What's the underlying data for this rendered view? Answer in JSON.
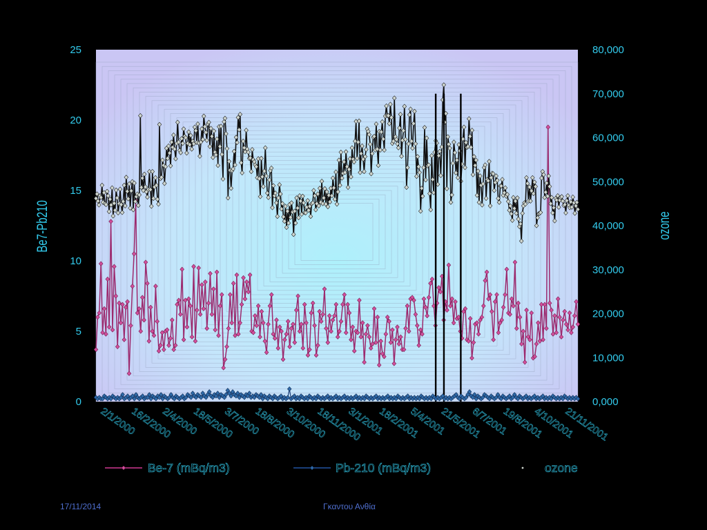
{
  "footer": {
    "date": "17/11/2014",
    "author": "Γκαντου Ανθία"
  },
  "colors": {
    "background": "#000000",
    "axis_text": "#33ccee",
    "be7": "#9c2a6e",
    "pb210": "#1a3f7a",
    "ozone": "#111111",
    "plot_outer": "#c8c6f4",
    "plot_inner": "#aef0fb"
  },
  "chart_data": {
    "type": "line",
    "title": "",
    "ylabel": "Be7-Pb210",
    "y2label": "ozone",
    "ylim": [
      0,
      25
    ],
    "y2lim": [
      0,
      80000
    ],
    "yticks": [
      "0",
      "5",
      "10",
      "15",
      "20",
      "25"
    ],
    "y2ticks": [
      "0,000",
      "10,000",
      "20,000",
      "30,000",
      "40,000",
      "50,000",
      "60,000",
      "70,000",
      "80,000"
    ],
    "x_range": [
      "2/1/2000",
      "31/12/2001"
    ],
    "x_tick_labels": [
      "2/1/2000",
      "16/2/2000",
      "2/4/2000",
      "18/5/2000",
      "3/7/2000",
      "18/8/2000",
      "3/10/2000",
      "18/11/2000",
      "3/1/2001",
      "18/2/2001",
      "5/4/2001",
      "21/5/2001",
      "6/7/2001",
      "19/8/2001",
      "4/10/2001",
      "21/11/2001"
    ],
    "legend_position": "bottom",
    "legend": [
      "Be-7 (mBq/m3)",
      "Pb-210 (mBq/m3)",
      "ozone"
    ],
    "series": [
      {
        "name": "Be-7 (mBq/m3)",
        "axis": "left",
        "values": [
          3.7,
          6.0,
          6.3,
          9.8,
          4.9,
          6.6,
          4.8,
          8.7,
          5.3,
          12.8,
          5.1,
          9.6,
          7.5,
          3.9,
          7.0,
          5.6,
          6.9,
          4.4,
          6.7,
          7.1,
          2.0,
          5.4,
          8.2,
          10.5,
          14.3,
          6.3,
          6.6,
          5.0,
          7.4,
          5.8,
          9.9,
          8.4,
          4.3,
          6.7,
          5.0,
          4.7,
          8.2,
          5.7,
          3.6,
          4.0,
          4.9,
          3.7,
          5.0,
          5.1,
          4.0,
          4.5,
          5.8,
          3.7,
          4.0,
          6.9,
          7.2,
          6.2,
          9.4,
          4.4,
          7.2,
          5.3,
          7.3,
          6.8,
          4.6,
          9.6,
          4.3,
          6.5,
          9.5,
          6.2,
          8.3,
          6.6,
          8.5,
          5.2,
          7.0,
          9.1,
          6.2,
          8.0,
          5.1,
          9.2,
          4.7,
          6.8,
          7.6,
          2.4,
          3.0,
          3.9,
          5.2,
          7.6,
          5.6,
          8.4,
          4.7,
          9.0,
          4.8,
          5.6,
          6.9,
          8.8,
          7.3,
          8.5,
          7.8,
          9.0,
          5.0,
          4.9,
          6.1,
          5.4,
          6.8,
          4.6,
          6.4,
          5.6,
          4.3,
          3.5,
          5.5,
          6.8,
          7.6,
          4.8,
          4.5,
          5.8,
          3.8,
          5.3,
          5.0,
          3.0,
          4.4,
          4.8,
          5.7,
          3.9,
          5.2,
          5.5,
          4.2,
          6.5,
          7.5,
          5.0,
          5.5,
          3.8,
          6.9,
          5.6,
          3.3,
          3.7,
          6.3,
          7.0,
          5.4,
          3.3,
          4.0,
          6.4,
          5.7,
          6.2,
          8.0,
          5.2,
          4.2,
          6.1,
          5.0,
          5.8,
          6.1,
          6.9,
          4.6,
          5.0,
          5.7,
          6.9,
          7.6,
          4.9,
          6.9,
          6.3,
          4.4,
          5.3,
          3.6,
          5.0,
          4.9,
          7.2,
          4.6,
          5.6,
          2.8,
          4.8,
          5.4,
          4.6,
          3.8,
          4.1,
          6.6,
          4.2,
          6.0,
          2.6,
          4.3,
          3.4,
          3.2,
          4.8,
          6.0,
          5.7,
          4.2,
          5.1,
          2.7,
          4.4,
          5.3,
          4.1,
          4.6,
          3.7,
          3.7,
          5.2,
          6.8,
          5.0,
          7.3,
          7.4,
          7.2,
          6.2,
          5.4,
          4.0,
          5.1,
          4.8,
          7.3,
          6.7,
          6.1,
          7.4,
          8.4,
          8.7,
          6.8,
          5.4,
          7.0,
          8.1,
          7.8,
          8.9,
          5.8,
          7.1,
          6.5,
          9.7,
          6.8,
          7.3,
          5.6,
          7.1,
          5.9,
          6.0,
          5.0,
          4.5,
          6.4,
          6.6,
          4.4,
          4.3,
          5.9,
          3.1,
          4.2,
          5.5,
          5.6,
          4.8,
          5.8,
          6.0,
          6.8,
          8.6,
          9.2,
          7.3,
          7.6,
          6.4,
          4.4,
          7.1,
          7.6,
          4.9,
          5.6,
          5.8,
          6.7,
          7.6,
          9.4,
          6.3,
          6.2,
          7.3,
          6.8,
          9.9,
          5.2,
          7.0,
          6.0,
          4.1,
          5.0,
          2.8,
          6.5,
          4.6,
          4.4,
          6.3,
          3.1,
          3.2,
          4.1,
          5.6,
          4.3,
          6.9,
          4.4,
          6.9,
          5.2,
          19.5,
          7.0,
          6.5,
          4.8,
          6.1,
          4.9,
          7.3,
          6.0,
          4.6,
          5.8,
          6.4,
          5.5,
          5.1,
          6.3,
          4.9,
          5.3,
          6.1,
          7.1,
          5.5
        ]
      },
      {
        "name": "Pb-210 (mBq/m3)",
        "axis": "left",
        "values": [
          0.3,
          0.2,
          0.3,
          0.2,
          0.2,
          0.4,
          0.3,
          0.2,
          0.3,
          0.2,
          0.4,
          0.3,
          0.2,
          0.3,
          0.2,
          0.3,
          0.5,
          0.2,
          0.3,
          0.4,
          0.2,
          0.3,
          0.4,
          0.2,
          0.5,
          0.3,
          0.2,
          0.3,
          0.4,
          0.2,
          0.3,
          0.3,
          0.5,
          0.2,
          0.4,
          0.3,
          0.2,
          0.4,
          0.3,
          0.5,
          0.2,
          0.4,
          0.3,
          0.2,
          0.3,
          0.5,
          0.3,
          0.2,
          0.4,
          0.3,
          0.2,
          0.3,
          0.4,
          0.2,
          0.3,
          0.5,
          0.4,
          0.3,
          0.6,
          0.4,
          0.3,
          0.5,
          0.4,
          0.3,
          0.6,
          0.4,
          0.3,
          0.5,
          0.7,
          0.4,
          0.3,
          0.5,
          0.4,
          0.6,
          0.3,
          0.5,
          0.4,
          0.3,
          0.5,
          0.8,
          0.6,
          0.4,
          0.7,
          0.5,
          0.4,
          0.6,
          0.3,
          0.5,
          0.4,
          0.3,
          0.5,
          0.4,
          0.6,
          0.3,
          0.4,
          0.3,
          0.5,
          0.4,
          0.3,
          0.5,
          0.2,
          0.4,
          0.3,
          0.2,
          0.4,
          0.3,
          0.2,
          0.4,
          0.3,
          0.2,
          0.3,
          0.4,
          0.2,
          0.3,
          0.2,
          0.3,
          0.9,
          0.2,
          0.3,
          0.4,
          0.2,
          0.3,
          0.2,
          0.4,
          0.3,
          0.2,
          0.3,
          0.2,
          0.4,
          0.3,
          0.2,
          0.3,
          0.2,
          0.4,
          0.3,
          0.2,
          0.3,
          0.2,
          0.3,
          0.4,
          0.2,
          0.3,
          0.2,
          0.3,
          0.4,
          0.2,
          0.3,
          0.2,
          0.3,
          0.4,
          0.2,
          0.3,
          0.2,
          0.3,
          0.2,
          0.3,
          0.4,
          0.2,
          0.3,
          0.2,
          0.3,
          0.2,
          0.4,
          0.3,
          0.2,
          0.3,
          0.2,
          0.3,
          0.4,
          0.2,
          0.3,
          0.2,
          0.3,
          0.2,
          0.3,
          0.4,
          0.2,
          0.3,
          0.2,
          0.3,
          0.2,
          0.4,
          0.3,
          0.2,
          0.3,
          0.2,
          0.3,
          0.4,
          0.2,
          0.3,
          0.2,
          0.3,
          0.2,
          0.3,
          0.2,
          0.4,
          0.3,
          0.2,
          0.3,
          0.2,
          0.3,
          0.2,
          0.4,
          0.3,
          0.2,
          0.3,
          0.2,
          0.3,
          0.4,
          0.2,
          0.3,
          0.2,
          0.3,
          0.2,
          0.3,
          0.4,
          0.5,
          0.3,
          0.2,
          0.4,
          0.3,
          0.2,
          0.3,
          0.5,
          0.7,
          0.4,
          0.3,
          0.5,
          0.2,
          0.4,
          0.3,
          0.2,
          0.3,
          0.5,
          0.4,
          0.3,
          0.2,
          0.4,
          0.3,
          0.2,
          0.3,
          0.5,
          0.3,
          0.2,
          0.4,
          0.3,
          0.2,
          0.3,
          0.4,
          0.2,
          0.3,
          0.5,
          0.3,
          0.2,
          0.4,
          0.3,
          0.2,
          0.3,
          0.4,
          0.2,
          0.3,
          0.2,
          0.3,
          0.4,
          0.2,
          0.3,
          0.2,
          0.3,
          0.4,
          0.2,
          0.3,
          0.2,
          0.3,
          0.2,
          0.4,
          0.3,
          0.2,
          0.3,
          0.2,
          0.3,
          0.2,
          0.4,
          0.3,
          0.2,
          0.3,
          0.2,
          0.3,
          0.2,
          0.3,
          0.2
        ]
      },
      {
        "name": "ozone",
        "axis": "right",
        "values": [
          46200,
          47200,
          45600,
          44700,
          46800,
          46400,
          49200,
          45300,
          47500,
          45000,
          44800,
          47800,
          46800,
          43200,
          46000,
          44700,
          48600,
          42200,
          45100,
          43500,
          48100,
          46300,
          42900,
          45000,
          48300,
          44800,
          43000,
          45500,
          49200,
          44500,
          51000,
          47800,
          46100,
          49500,
          44000,
          47900,
          50000,
          43600,
          49700,
          45500,
          46600,
          47200,
          44600,
          47000,
          65000,
          48700,
          50800,
          48000,
          51700,
          48800,
          47700,
          46500,
          48200,
          52300,
          48200,
          44400,
          52300,
          46200,
          48800,
          50900,
          49200,
          46000,
          44900,
          63000,
          50700,
          51000,
          54900,
          53700,
          49600,
          53400,
          57600,
          55300,
          58100,
          56500,
          53600,
          59000,
          57800,
          60600,
          57400,
          55200,
          58700,
          63500,
          59000,
          57100,
          56600,
          59800,
          58700,
          62000,
          60300,
          60000,
          56500,
          58700,
          61300,
          58400,
          60500,
          57400,
          59200,
          58600,
          62400,
          61600,
          58900,
          63100,
          58800,
          55800,
          59000,
          62000,
          59600,
          64900,
          62500,
          61200,
          59400,
          63100,
          63500,
          58000,
          62100,
          60300,
          55500,
          61500,
          56700,
          56100,
          59700,
          53700,
          62500,
          58000,
          62600,
          56200,
          50600,
          63600,
          64400,
          60900,
          57500,
          46300,
          54600,
          52600,
          48500,
          52500,
          52900,
          56900,
          53800,
          60100,
          58900,
          64600,
          61800,
          65300,
          54300,
          52000,
          59200,
          57700,
          56800,
          61700,
          57400,
          56700,
          55300,
          55400,
          52300,
          57300,
          55000,
          54500,
          53800,
          53400,
          50900,
          55200,
          50700,
          46600,
          55300,
          51100,
          48900,
          52400,
          57700,
          51300,
          47400,
          46400,
          50400,
          52500,
          53100,
          44100,
          49100,
          46800,
          47400,
          45200,
          42100,
          46300,
          49300,
          47200,
          43800,
          45000,
          42000,
          41000,
          44400,
          39600,
          43300,
          40600,
          44800,
          41900,
          45200,
          43100,
          38000,
          43300,
          40600,
          46300,
          44000,
          41800,
          46800,
          45600,
          42600,
          46700,
          45200,
          43000,
          42900,
          44200,
          45700,
          43500,
          44400,
          42100,
          45000,
          45200,
          48000,
          46800,
          43600,
          45000,
          47200,
          44500,
          48500,
          45300,
          50100,
          45000,
          46300,
          48400,
          44900,
          47700,
          44300,
          46900,
          45400,
          48500,
          46800,
          50800,
          48600,
          46000,
          52200,
          44900,
          47700,
          54900,
          49200,
          56700,
          50800,
          51900,
          54500,
          52100,
          56800,
          53400,
          48700,
          52800,
          55200,
          51100,
          57700,
          55100,
          54500,
          59200,
          63700,
          55300,
          59000,
          63800,
          52100,
          56400,
          58100,
          55100,
          52300,
          55700,
          57300,
          62000,
          61400,
          60700,
          58500,
          51800,
          56400,
          60100,
          60300,
          57200,
          63100,
          57400,
          53700,
          61400,
          57200,
          61300,
          63600,
          59700,
          57200,
          64900,
          67200,
          65000,
          65000,
          63200,
          67600,
          64600,
          58700,
          59200,
          69000,
          60200,
          59600,
          58600,
          57700,
          62200,
          65300,
          55800,
          59400,
          61600,
          67100,
          59600,
          48700,
          53200,
          58600,
          65200,
          66500,
          59200,
          57600,
          63200,
          66000,
          58600,
          51200,
          55700,
          53400,
          52100,
          43300,
          48500,
          46700,
          53200,
          62300,
          50400,
          59900,
          53600,
          53800,
          47300,
          43600,
          55900,
          50500,
          47500,
          56700,
          59300,
          58800,
          49400,
          55900,
          56900,
          51400,
          57900,
          68600,
          72000,
          63500,
          65500,
          48400,
          60200,
          58500,
          57600,
          45300,
          47000,
          54200,
          59000,
          56600,
          52000,
          54900,
          50900,
          58400,
          57000,
          50100,
          54000,
          59700,
          62400,
          53200,
          58900,
          57800,
          58000,
          64300,
          60300,
          57800,
          61700,
          51600,
          55700,
          53700,
          54900,
          46900,
          52400,
          45300,
          51300,
          49200,
          44700,
          49500,
          53200,
          53800,
          46200,
          50500,
          50200,
          54600,
          44500,
          50900,
          51900,
          51800,
          48000,
          49800,
          51300,
          50300,
          46200,
          45300,
          49000,
          49000,
          50500,
          46900,
          47500,
          48600,
          46700,
          47100,
          45500,
          43500,
          44500,
          42700,
          41200,
          46400,
          43900,
          45600,
          42800,
          46300,
          41500,
          39800,
          40400,
          36500,
          42800,
          44500,
          45200,
          44900,
          50900,
          49600,
          45600,
          48800,
          45600,
          47900,
          50900,
          47300,
          49900,
          48900,
          40000,
          41800,
          42700,
          42800,
          43000,
          50800,
          52300,
          51600,
          46400,
          47600,
          49700,
          46700,
          51300,
          48900,
          45000,
          46400,
          42900,
          44100,
          41100,
          46200,
          45800,
          46800,
          44200,
          45800,
          46400,
          46600,
          45600,
          44600,
          44800,
          42900,
          45700,
          46800,
          44600,
          44100,
          45400,
          44200,
          46500,
          45200,
          42800,
          44500,
          45300,
          43700
        ]
      }
    ],
    "ozone_dropouts": [
      0.705,
      0.722,
      0.757
    ],
    "ozone_dropout_value": 0
  }
}
